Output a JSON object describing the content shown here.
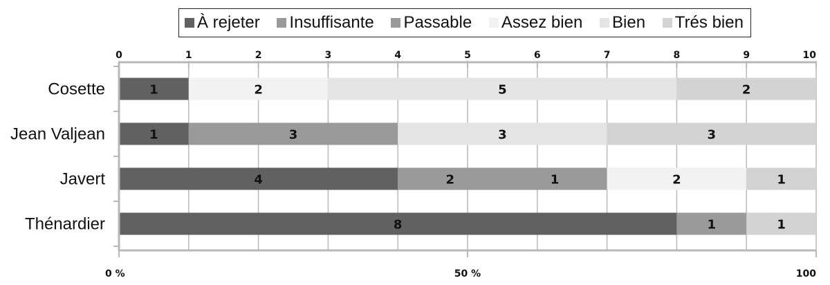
{
  "chart_data": {
    "type": "bar",
    "orientation": "horizontal",
    "stacked": true,
    "categories": [
      "Cosette",
      "Jean Valjean",
      "Javert",
      "Thénardier"
    ],
    "series": [
      {
        "name": "À rejeter",
        "color": "#616161",
        "values": [
          1,
          1,
          4,
          8
        ]
      },
      {
        "name": "Insuffisante",
        "color": "#9a9a9a",
        "values": [
          0,
          3,
          0,
          0
        ]
      },
      {
        "name": "Passable",
        "color": "#9a9a9a",
        "values": [
          0,
          0,
          3,
          1
        ]
      },
      {
        "name": "Assez bien",
        "color": "#f2f2f2",
        "values": [
          2,
          0,
          2,
          0
        ]
      },
      {
        "name": "Bien",
        "color": "#e4e4e4",
        "values": [
          5,
          3,
          0,
          0
        ]
      },
      {
        "name": "Trés bien",
        "color": "#d3d3d3",
        "values": [
          2,
          3,
          1,
          1
        ]
      }
    ],
    "segment_labels": [
      [
        "1",
        "",
        "",
        "2",
        "5",
        "2"
      ],
      [
        "1",
        "3",
        "",
        "",
        "3",
        "3"
      ],
      [
        "4",
        "",
        "2|1",
        "2",
        "",
        "1"
      ],
      [
        "8",
        "",
        "1",
        "",
        "",
        "1"
      ]
    ],
    "top_axis": {
      "ticks": [
        "0",
        "1",
        "2",
        "3",
        "4",
        "5",
        "6",
        "7",
        "8",
        "9",
        "10"
      ],
      "range": [
        0,
        10
      ]
    },
    "bottom_axis": {
      "ticks": [
        "0 %",
        "50 %",
        "100"
      ],
      "positions": [
        0,
        5,
        10
      ]
    },
    "grid": true,
    "legend_position": "top"
  }
}
